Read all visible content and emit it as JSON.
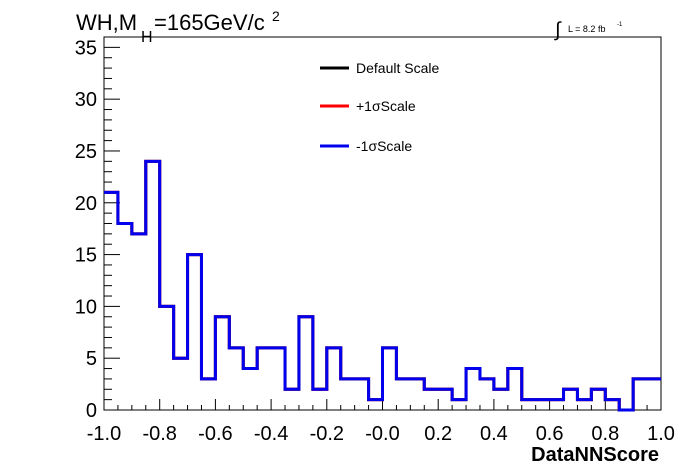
{
  "figure": {
    "title_main": "WH,M",
    "title_sub": "H",
    "title_rest": "=165GeV/c",
    "title_sup": "2",
    "lumi_integral": "∫",
    "lumi_text": "L = 8.2 fb",
    "lumi_sup": "-1"
  },
  "chart_data": {
    "type": "line",
    "style": "step histogram",
    "xlabel": "DataNNScore",
    "ylabel": "",
    "xlim": [
      -1.0,
      1.0
    ],
    "ylim": [
      0,
      36
    ],
    "x_tick_labels": [
      "-1.0",
      "-0.8",
      "-0.6",
      "-0.4",
      "-0.2",
      "-0.0",
      "0.2",
      "0.4",
      "0.6",
      "0.8",
      "1.0"
    ],
    "y_tick_labels": [
      "0",
      "5",
      "10",
      "15",
      "20",
      "25",
      "30",
      "35"
    ],
    "bin_edges": [
      -1.0,
      -0.95,
      -0.9,
      -0.85,
      -0.8,
      -0.75,
      -0.7,
      -0.65,
      -0.6,
      -0.55,
      -0.5,
      -0.45,
      -0.4,
      -0.35,
      -0.3,
      -0.25,
      -0.2,
      -0.15,
      -0.1,
      -0.05,
      0.0,
      0.05,
      0.1,
      0.15,
      0.2,
      0.25,
      0.3,
      0.35,
      0.4,
      0.45,
      0.5,
      0.55,
      0.6,
      0.65,
      0.7,
      0.75,
      0.8,
      0.85,
      0.9,
      0.95,
      1.0
    ],
    "series": [
      {
        "name": "Default Scale",
        "color": "#000000",
        "values": [
          21,
          18,
          17,
          24,
          10,
          5,
          15,
          3,
          9,
          6,
          4,
          6,
          6,
          2,
          9,
          2,
          6,
          3,
          3,
          1,
          6,
          3,
          3,
          2,
          2,
          1,
          4,
          3,
          2,
          4,
          1,
          1,
          1,
          2,
          1,
          2,
          1,
          0,
          3,
          3
        ]
      },
      {
        "name": "+1σScale",
        "color": "#ff0000",
        "values": [
          21,
          18,
          17,
          24,
          10,
          5,
          15,
          3,
          9,
          6,
          4,
          6,
          6,
          2,
          9,
          2,
          6,
          3,
          3,
          1,
          6,
          3,
          3,
          2,
          2,
          1,
          4,
          3,
          2,
          4,
          1,
          1,
          1,
          2,
          1,
          2,
          1,
          0,
          3,
          3
        ]
      },
      {
        "name": "-1σScale",
        "color": "#0000ee",
        "values": [
          21,
          18,
          17,
          24,
          10,
          5,
          15,
          3,
          9,
          6,
          4,
          6,
          6,
          2,
          9,
          2,
          6,
          3,
          3,
          1,
          6,
          3,
          3,
          2,
          2,
          1,
          4,
          3,
          2,
          4,
          1,
          1,
          1,
          2,
          1,
          2,
          1,
          0,
          3,
          3
        ]
      }
    ],
    "legend_position": "top-center",
    "grid": false
  }
}
